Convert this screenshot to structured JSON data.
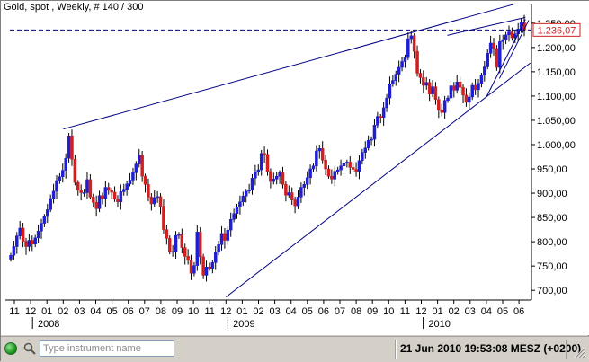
{
  "chart": {
    "title": "Gold, spot , Weekly, # 140 / 300",
    "price_label": "1.236,07"
  },
  "chart_data": {
    "type": "candlestick",
    "title": "Gold, spot , Weekly, # 140 / 300",
    "ylim": [
      680,
      1270
    ],
    "yticks": [
      {
        "value": 700,
        "label": "700,00"
      },
      {
        "value": 750,
        "label": "750,00"
      },
      {
        "value": 800,
        "label": "800,00"
      },
      {
        "value": 850,
        "label": "850,00"
      },
      {
        "value": 900,
        "label": "900,00"
      },
      {
        "value": 950,
        "label": "950,00"
      },
      {
        "value": 1000,
        "label": "1.000,00"
      },
      {
        "value": 1050,
        "label": "1.050,00"
      },
      {
        "value": 1100,
        "label": "1.100,00"
      },
      {
        "value": 1150,
        "label": "1.150,00"
      },
      {
        "value": 1200,
        "label": "1.200,00"
      },
      {
        "value": 1250,
        "label": "1.250,00"
      }
    ],
    "month_ticks": [
      "11",
      "12",
      "01",
      "02",
      "03",
      "04",
      "05",
      "06",
      "07",
      "08",
      "09",
      "10",
      "11",
      "12",
      "01",
      "02",
      "03",
      "04",
      "05",
      "06",
      "07",
      "08",
      "09",
      "10",
      "11",
      "12",
      "01",
      "02",
      "03",
      "04",
      "05",
      "06"
    ],
    "year_labels": [
      {
        "label": "2008",
        "month_index": 2
      },
      {
        "label": "2009",
        "month_index": 14
      },
      {
        "label": "2010",
        "month_index": 26
      }
    ],
    "current_price": 1236.07,
    "up_color": "#1f1fd1",
    "down_color": "#d11f1f",
    "trendlines": [
      {
        "from": [
          3.0,
          1032
        ],
        "to": [
          30.8,
          1290
        ]
      },
      {
        "from": [
          13.0,
          686
        ],
        "to": [
          31.7,
          1168
        ]
      },
      {
        "from": [
          26.6,
          1225
        ],
        "to": [
          31.4,
          1262
        ]
      },
      {
        "from": [
          29.0,
          1098
        ],
        "to": [
          31.4,
          1258
        ]
      },
      {
        "from": [
          29.8,
          1136
        ],
        "to": [
          31.6,
          1256
        ]
      }
    ],
    "candles_closes": [
      772,
      790,
      812,
      828,
      801,
      790,
      803,
      795,
      808,
      822,
      838,
      852,
      866,
      889,
      904,
      926,
      934,
      947,
      972,
      1018,
      970,
      922,
      906,
      901,
      901,
      928,
      892,
      881,
      868,
      895,
      889,
      912,
      906,
      902,
      888,
      882,
      903,
      908,
      919,
      927,
      942,
      960,
      978,
      935,
      918,
      892,
      878,
      891,
      893,
      873,
      825,
      807,
      779,
      780,
      813,
      815,
      788,
      770,
      762,
      735,
      751,
      820,
      769,
      731,
      748,
      745,
      757,
      779,
      794,
      817,
      803,
      824,
      846,
      858,
      872,
      882,
      894,
      904,
      907,
      931,
      943,
      948,
      982,
      980,
      945,
      924,
      929,
      935,
      942,
      918,
      896,
      901,
      886,
      874,
      892,
      912,
      918,
      932,
      950,
      956,
      987,
      992,
      968,
      950,
      935,
      929,
      945,
      948,
      956,
      962,
      964,
      953,
      949,
      945,
      967,
      984,
      993,
      1009,
      1011,
      1040,
      1058,
      1056,
      1076,
      1096,
      1125,
      1132,
      1145,
      1159,
      1171,
      1179,
      1218,
      1224,
      1192,
      1147,
      1138,
      1122,
      1128,
      1104,
      1119,
      1093,
      1071,
      1066,
      1091,
      1096,
      1121,
      1112,
      1129,
      1118,
      1102,
      1087,
      1098,
      1122,
      1113,
      1126,
      1143,
      1160,
      1188,
      1209,
      1198,
      1159,
      1212,
      1216,
      1226,
      1232,
      1220,
      1228,
      1238,
      1252,
      1236
    ]
  },
  "bottom": {
    "search_placeholder": "Type instrument name",
    "datetime": "21 Jun 2010 19:53:08  MESZ (+0200)"
  },
  "colors": {
    "axis": "#000000",
    "trendline": "#000080",
    "price_line": "#000080",
    "price_label_border": "#d11f1f"
  }
}
